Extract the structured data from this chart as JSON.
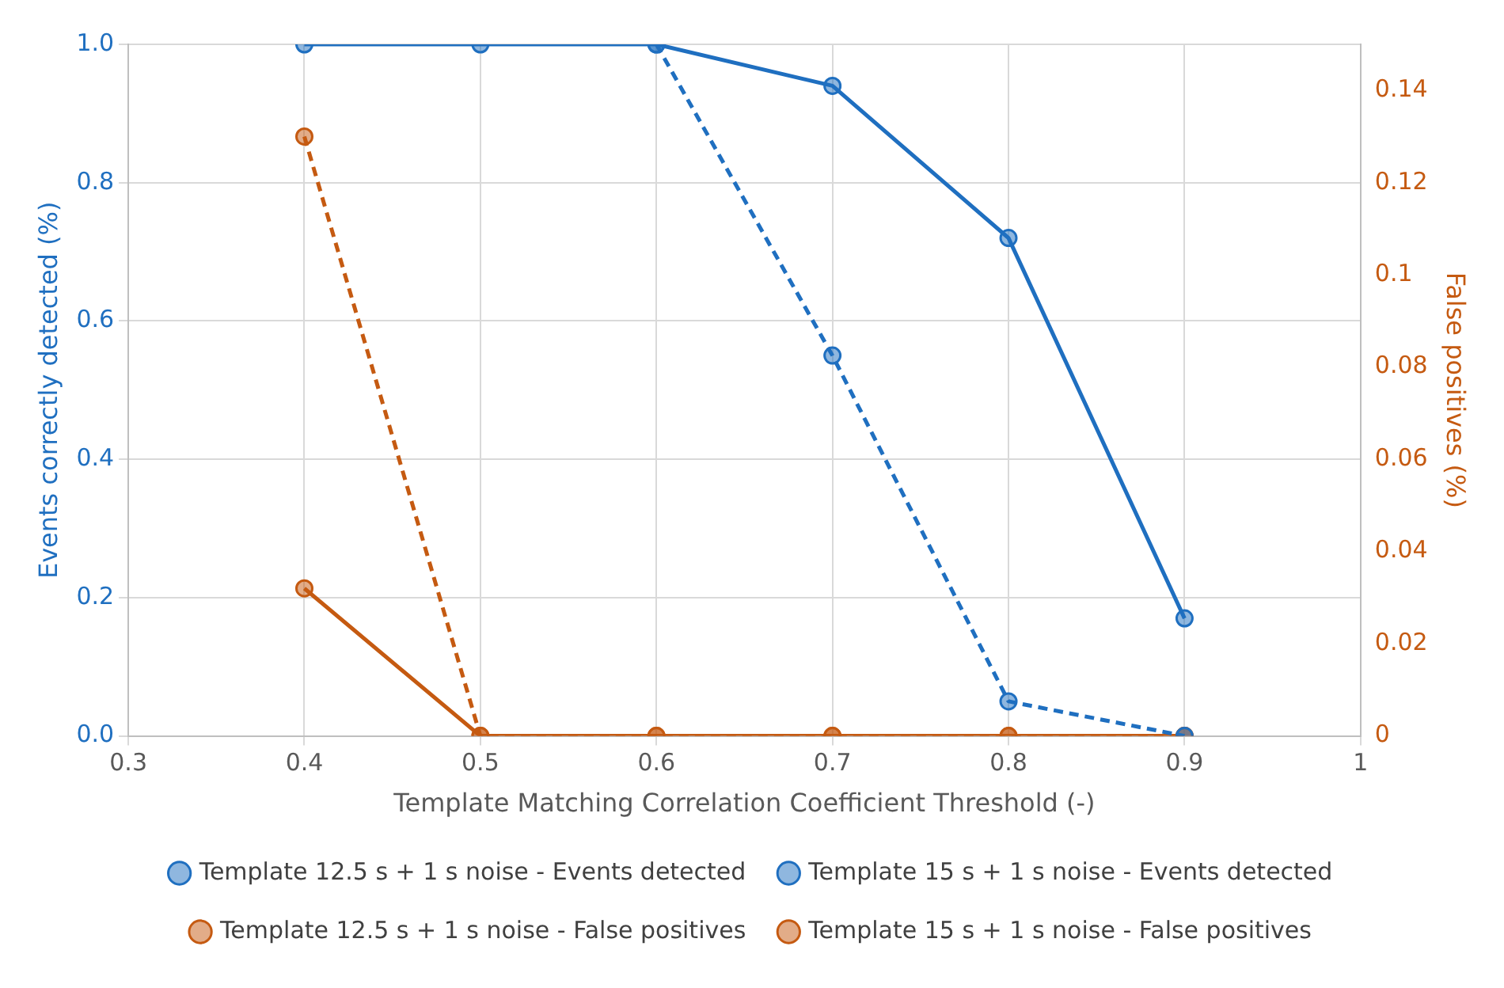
{
  "chart_data": {
    "type": "line",
    "xlabel": "Template Matching Correlation Coefficient Threshold (-)",
    "ylabel": "Events correctly detected (%)",
    "y2label": "False positives (%)",
    "x": [
      0.4,
      0.5,
      0.6,
      0.7,
      0.8,
      0.9
    ],
    "series": [
      {
        "name": "Template 12.5 s + 1 s noise - Events detected",
        "color": "#1f6fc0",
        "values": [
          1.0,
          1.0,
          1.0,
          0.94,
          0.72,
          0.17
        ],
        "line_style": "solid"
      },
      {
        "name": "Template 15 s + 1 s noise - Events detected",
        "color": "#1f6fc0",
        "values": [
          null,
          null,
          1.0,
          0.55,
          0.05,
          0
        ],
        "line_style": "dashed"
      },
      {
        "name": "Template 12.5 s + 1 s noise - False positives",
        "color": "#c55a11",
        "values": [
          0.032,
          0,
          0,
          0,
          0,
          0
        ],
        "line_style": "solid",
        "axis": "y2"
      },
      {
        "name": "Template 15 s + 1 s noise - False positives",
        "color": "#c55a11",
        "values": [
          0.13,
          0,
          0,
          0,
          0,
          0
        ],
        "line_style": "dashed",
        "axis": "y2"
      }
    ],
    "xlim": [
      0.3,
      1
    ],
    "xticks": [
      0.3,
      0.4,
      0.5,
      0.6,
      0.7,
      0.8,
      0.9,
      1
    ],
    "ylim": [
      0,
      1
    ],
    "yticks": [
      {
        "value": 0,
        "label": "0.0"
      },
      {
        "value": 0.2,
        "label": "0.2"
      },
      {
        "value": 0.4,
        "label": "0.4"
      },
      {
        "value": 0.6,
        "label": "0.6"
      },
      {
        "value": 0.8,
        "label": "0.8"
      },
      {
        "value": 1,
        "label": "1.0"
      }
    ],
    "y2lim": [
      0,
      0.15
    ],
    "y2ticks": [
      0,
      0.02,
      0.04,
      0.06,
      0.08,
      0.1,
      0.12,
      0.14
    ],
    "grid": true,
    "legend": "bottom",
    "marker": "circle"
  }
}
